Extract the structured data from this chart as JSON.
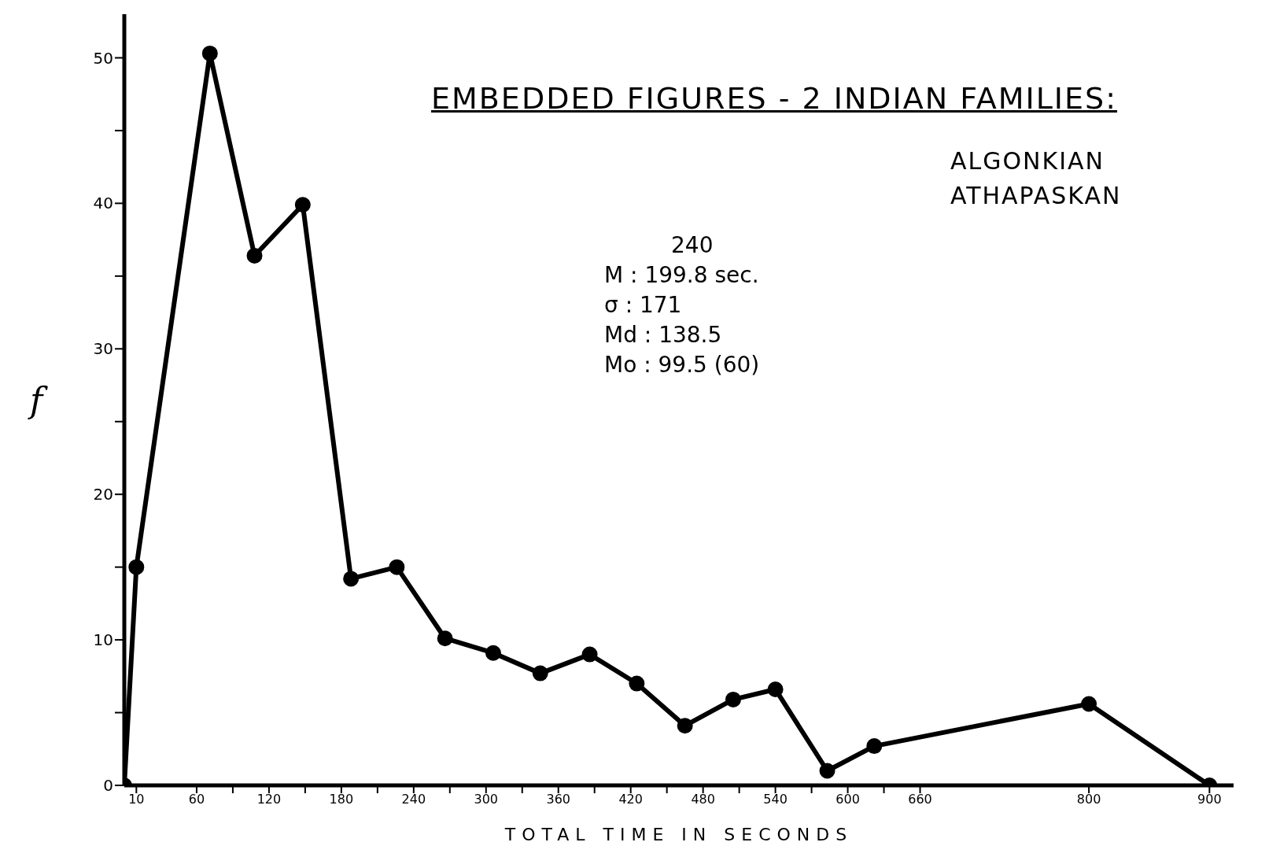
{
  "chart_data": {
    "type": "line",
    "title": "EMBEDDED FIGURES - 2 INDIAN FAMILIES:",
    "subtitle": "ALGONKIAN\nATHAPASKAN",
    "xlabel": "TOTAL TIME IN SECONDS",
    "ylabel": "f",
    "annotations": [
      "240",
      "M : 199.8 sec.",
      "σ : 171",
      "Md : 138.5",
      "Mo : 99.5 (60)"
    ],
    "x": [
      0,
      10,
      71,
      108,
      148,
      188,
      226,
      266,
      306,
      345,
      386,
      425,
      465,
      505,
      540,
      583,
      622,
      800,
      900
    ],
    "series": [
      {
        "color": "#000000",
        "values": [
          0,
          15,
          50.3,
          36.4,
          39.9,
          14.2,
          15,
          10.1,
          9.1,
          7.7,
          9,
          7,
          4.1,
          5.9,
          6.6,
          1,
          2.7,
          5.6,
          0
        ]
      }
    ],
    "xlim": [
      0,
      920
    ],
    "xticks": [
      10,
      60,
      {
        "value": 90,
        "label": null
      },
      120,
      {
        "value": 150,
        "label": null
      },
      180,
      {
        "value": 210,
        "label": null
      },
      240,
      {
        "value": 270,
        "label": null
      },
      300,
      {
        "value": 330,
        "label": null
      },
      360,
      {
        "value": 390,
        "label": null
      },
      420,
      {
        "value": 450,
        "label": null
      },
      480,
      {
        "value": 510,
        "label": null
      },
      540,
      {
        "value": 570,
        "label": null
      },
      600,
      {
        "value": 630,
        "label": null
      },
      660,
      800,
      900
    ],
    "ylim": [
      0,
      53
    ],
    "yticks": [
      0,
      {
        "value": 5,
        "label": null
      },
      10,
      {
        "value": 15,
        "label": null
      },
      20,
      {
        "value": 25,
        "label": null
      },
      30,
      {
        "value": 35,
        "label": null
      },
      40,
      {
        "value": 45,
        "label": null
      },
      50
    ],
    "grid": false,
    "marker": "circle",
    "line_style": "solid"
  }
}
